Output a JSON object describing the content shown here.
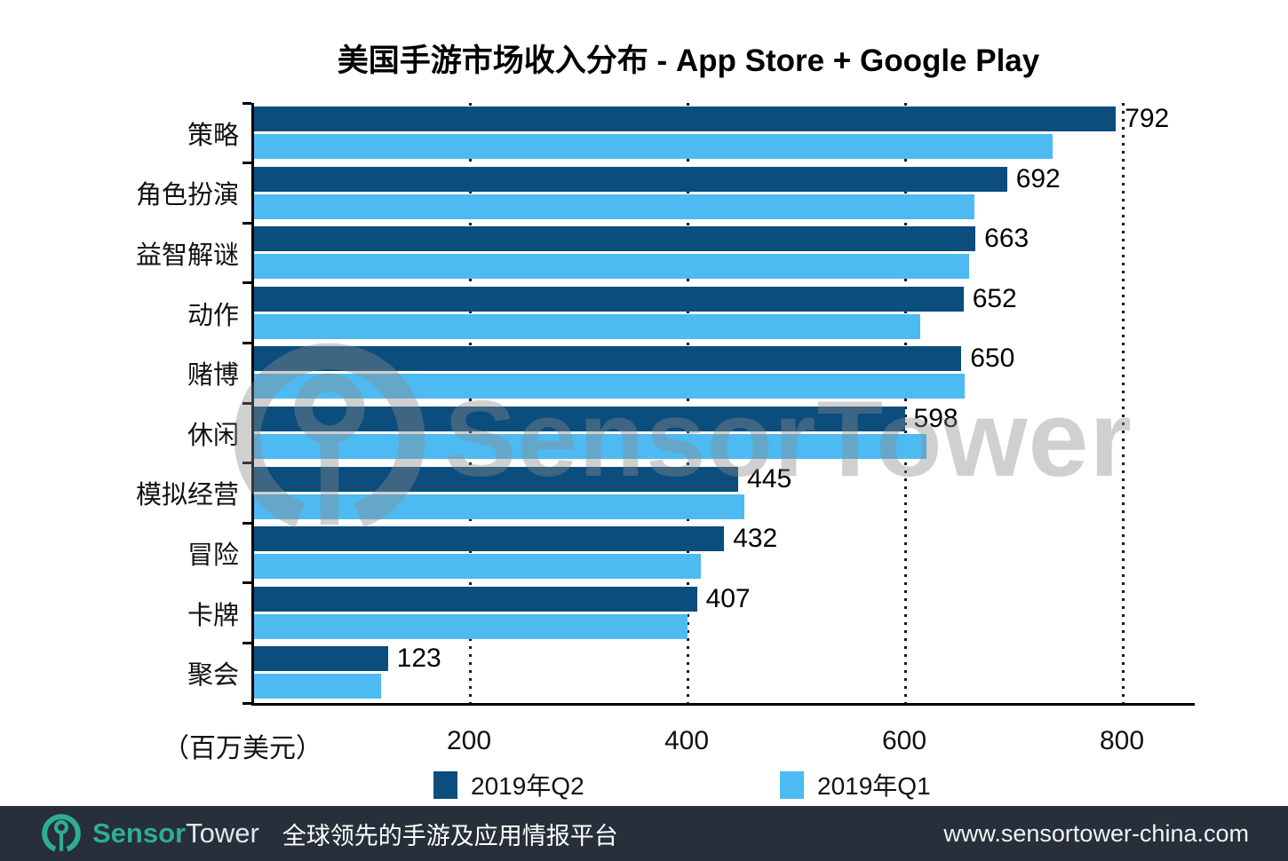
{
  "chart_data": {
    "type": "bar",
    "orientation": "horizontal",
    "title": "美国手游市场收入分布 - App Store + Google Play",
    "categories": [
      "策略",
      "角色扮演",
      "益智解谜",
      "动作",
      "赌博",
      "休闲",
      "模拟经营",
      "冒险",
      "卡牌",
      "聚会"
    ],
    "series": [
      {
        "name": "2019年Q2",
        "color": "#0b4d7d",
        "labeled": true,
        "values": [
          792,
          692,
          663,
          652,
          650,
          598,
          445,
          432,
          407,
          123
        ]
      },
      {
        "name": "2019年Q1",
        "color": "#4dbaf2",
        "labeled": false,
        "values": [
          734,
          662,
          657,
          612,
          653,
          618,
          451,
          411,
          398,
          117
        ]
      }
    ],
    "xlabel": "（百万美元）",
    "x_ticks": [
      200,
      400,
      600,
      800
    ],
    "xlim": [
      0,
      800
    ],
    "grid": "dotted-vertical",
    "legend_position": "bottom"
  },
  "watermark": {
    "text": "SensorTower"
  },
  "footer": {
    "brand_sensor": "Sensor",
    "brand_tower": "Tower",
    "tagline": "全球领先的手游及应用情报平台",
    "url": "www.sensortower-china.com"
  }
}
